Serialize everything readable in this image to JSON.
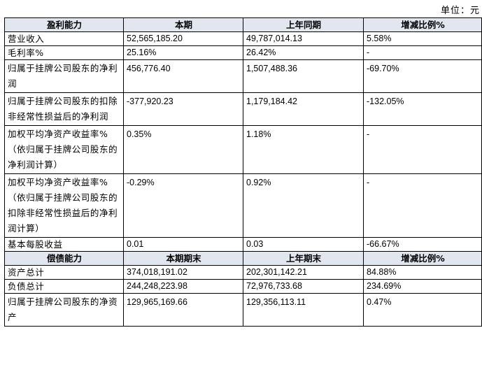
{
  "unit_label": "单位：元",
  "profit": {
    "headers": [
      "盈利能力",
      "本期",
      "上年同期",
      "增减比例%"
    ],
    "rows": [
      {
        "label": "营业收入",
        "current": "52,565,185.20",
        "prior": "49,787,014.13",
        "change": "5.58%"
      },
      {
        "label": "毛利率%",
        "current": "25.16%",
        "prior": "26.42%",
        "change": "-"
      },
      {
        "label": "归属于挂牌公司股东的净利润",
        "current": "456,776.40",
        "prior": "1,507,488.36",
        "change": "-69.70%"
      },
      {
        "label": "归属于挂牌公司股东的扣除非经常性损益后的净利润",
        "current": "-377,920.23",
        "prior": "1,179,184.42",
        "change": "-132.05%"
      },
      {
        "label": "加权平均净资产收益率%（依归属于挂牌公司股东的净利润计算）",
        "current": "0.35%",
        "prior": "1.18%",
        "change": "-"
      },
      {
        "label": "加权平均净资产收益率%（依归属于挂牌公司股东的扣除非经常性损益后的净利润计算）",
        "current": "-0.29%",
        "prior": "0.92%",
        "change": "-"
      },
      {
        "label": "基本每股收益",
        "current": "0.01",
        "prior": "0.03",
        "change": "-66.67%"
      }
    ]
  },
  "solvency": {
    "headers": [
      "偿债能力",
      "本期期末",
      "上年期末",
      "增减比例%"
    ],
    "rows": [
      {
        "label": "资产总计",
        "current": "374,018,191.02",
        "prior": "202,301,142.21",
        "change": "84.88%"
      },
      {
        "label": "负债总计",
        "current": "244,248,223.98",
        "prior": "72,976,733.68",
        "change": "234.69%"
      },
      {
        "label": "归属于挂牌公司股东的净资产",
        "current": "129,965,169.66",
        "prior": "129,356,113.11",
        "change": "0.47%"
      }
    ]
  }
}
